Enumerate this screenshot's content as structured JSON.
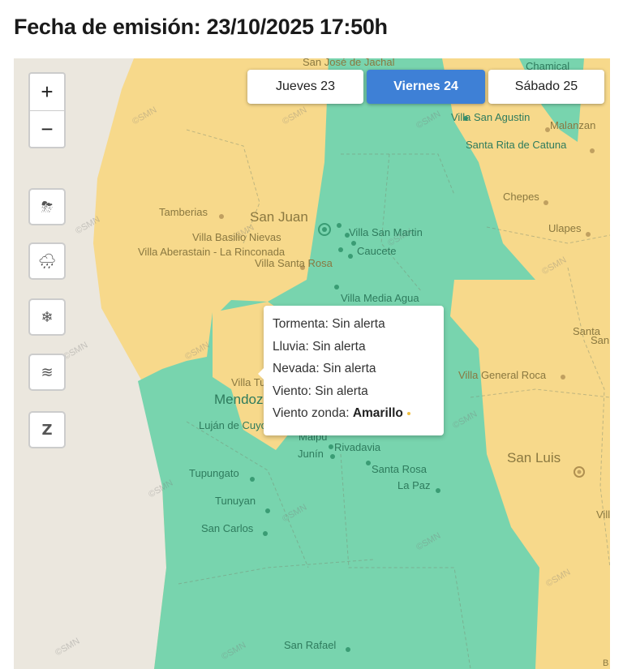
{
  "header": {
    "title": "Fecha de emisión: 23/10/2025 17:50h"
  },
  "colors": {
    "alert_yellow": "#f7d98b",
    "no_alert_green": "#78d4ae",
    "background": "#ebe7de",
    "active_tab": "#3e80d6"
  },
  "tabs": [
    {
      "label": "Jueves 23",
      "active": false
    },
    {
      "label": "Viernes 24",
      "active": true
    },
    {
      "label": "Sábado 25",
      "active": false
    }
  ],
  "zoom": {
    "in": "+",
    "out": "−"
  },
  "layers": [
    {
      "icon": "storm-icon",
      "glyph": "⛈"
    },
    {
      "icon": "rain-icon",
      "glyph": "🌧"
    },
    {
      "icon": "snow-icon",
      "glyph": "❄"
    },
    {
      "icon": "wind-icon",
      "glyph": "≋"
    },
    {
      "icon": "zonda-icon",
      "glyph": "Z"
    }
  ],
  "watermark": "©SMN",
  "places": [
    "San José de Jachal",
    "Chamical",
    "Villa San Agustin",
    "Malanzan",
    "Santa Rita de Catuna",
    "Chepes",
    "Tamberias",
    "San Juan",
    "Villa San Martin",
    "Ulapes",
    "Villa Basilio Nievas",
    "Villa Aberastain - La Rinconada",
    "Caucete",
    "Villa Santa Rosa",
    "Villa Media Agua",
    "Santa",
    "San",
    "Villa General Roca",
    "Villa Tulumaya",
    "Mendoza",
    "Luján de Cuyo",
    "Maipú",
    "Rivadavia",
    "Junín",
    "Santa Rosa",
    "La Paz",
    "San Luis",
    "Tupungato",
    "Tunuyan",
    "San Carlos",
    "Vill",
    "San Rafael",
    "B"
  ],
  "tooltip": {
    "rows": [
      {
        "label": "Tormenta:",
        "value": "Sin alerta"
      },
      {
        "label": "Lluvia:",
        "value": "Sin alerta"
      },
      {
        "label": "Nevada:",
        "value": "Sin alerta"
      },
      {
        "label": "Viento:",
        "value": "Sin alerta"
      },
      {
        "label": "Viento zonda:",
        "value": "Amarillo"
      }
    ]
  }
}
